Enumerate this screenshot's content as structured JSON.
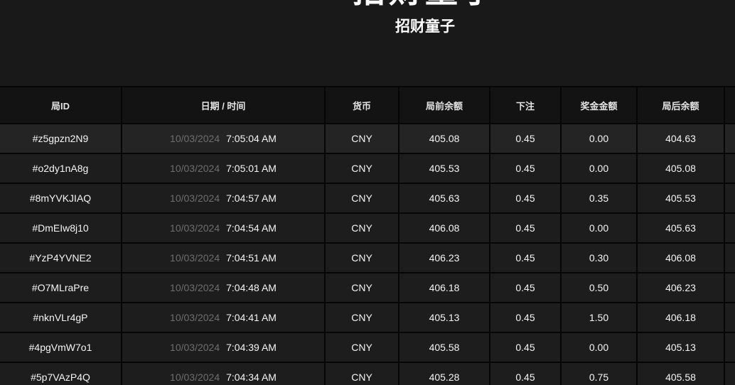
{
  "header": {
    "clipped_logo_text": "招财童子",
    "game_title": "招财童子"
  },
  "table": {
    "columns": [
      {
        "key": "round_id",
        "label": "局ID"
      },
      {
        "key": "datetime",
        "label": "日期 / 时间"
      },
      {
        "key": "currency",
        "label": "货币"
      },
      {
        "key": "balance_before",
        "label": "局前余额"
      },
      {
        "key": "bet",
        "label": "下注"
      },
      {
        "key": "win",
        "label": "奖金金额"
      },
      {
        "key": "balance_after",
        "label": "局后余额"
      },
      {
        "key": "extra",
        "label": ""
      }
    ],
    "rows": [
      {
        "round_id": "#z5gpzn2N9",
        "date": "10/03/2024",
        "time": "7:05:04 AM",
        "currency": "CNY",
        "balance_before": "405.08",
        "bet": "0.45",
        "win": "0.00",
        "balance_after": "404.63",
        "extra": ""
      },
      {
        "round_id": "#o2dy1nA8g",
        "date": "10/03/2024",
        "time": "7:05:01 AM",
        "currency": "CNY",
        "balance_before": "405.53",
        "bet": "0.45",
        "win": "0.00",
        "balance_after": "405.08",
        "extra": ""
      },
      {
        "round_id": "#8mYVKJIAQ",
        "date": "10/03/2024",
        "time": "7:04:57 AM",
        "currency": "CNY",
        "balance_before": "405.63",
        "bet": "0.45",
        "win": "0.35",
        "balance_after": "405.53",
        "extra": ""
      },
      {
        "round_id": "#DmEIw8j10",
        "date": "10/03/2024",
        "time": "7:04:54 AM",
        "currency": "CNY",
        "balance_before": "406.08",
        "bet": "0.45",
        "win": "0.00",
        "balance_after": "405.63",
        "extra": ""
      },
      {
        "round_id": "#YzP4YVNE2",
        "date": "10/03/2024",
        "time": "7:04:51 AM",
        "currency": "CNY",
        "balance_before": "406.23",
        "bet": "0.45",
        "win": "0.30",
        "balance_after": "406.08",
        "extra": ""
      },
      {
        "round_id": "#O7MLraPre",
        "date": "10/03/2024",
        "time": "7:04:48 AM",
        "currency": "CNY",
        "balance_before": "406.18",
        "bet": "0.45",
        "win": "0.50",
        "balance_after": "406.23",
        "extra": ""
      },
      {
        "round_id": "#nknVLr4gP",
        "date": "10/03/2024",
        "time": "7:04:41 AM",
        "currency": "CNY",
        "balance_before": "405.13",
        "bet": "0.45",
        "win": "1.50",
        "balance_after": "406.18",
        "extra": ""
      },
      {
        "round_id": "#4pgVmW7o1",
        "date": "10/03/2024",
        "time": "7:04:39 AM",
        "currency": "CNY",
        "balance_before": "405.58",
        "bet": "0.45",
        "win": "0.00",
        "balance_after": "405.13",
        "extra": ""
      },
      {
        "round_id": "#5p7VAzP4Q",
        "date": "10/03/2024",
        "time": "7:04:34 AM",
        "currency": "CNY",
        "balance_before": "405.28",
        "bet": "0.45",
        "win": "0.75",
        "balance_after": "405.58",
        "extra": ""
      }
    ]
  },
  "colors": {
    "page_background": "#191919",
    "header_row_background": "#131313",
    "row_background": "#1d1d1d",
    "first_row_background": "#242424",
    "separator": "#060606",
    "header_text": "#e3e3e3",
    "cell_text": "#f5f5f5",
    "date_text": "#6e6e6e",
    "title_text": "#ffffff"
  }
}
